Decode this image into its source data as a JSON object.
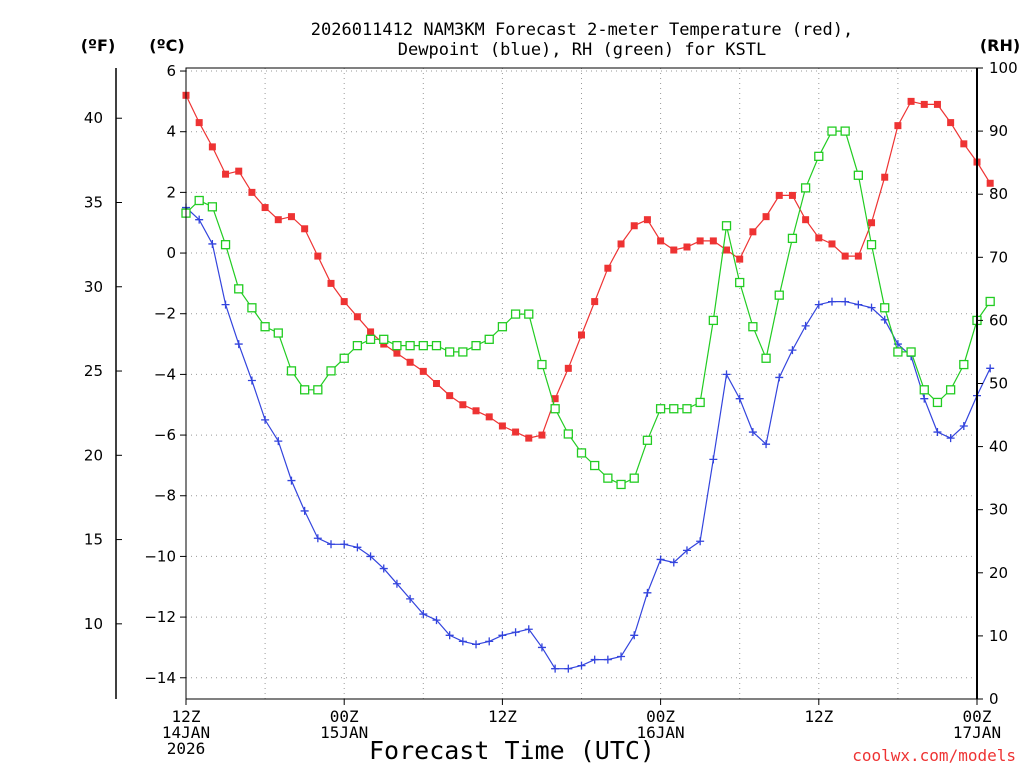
{
  "chart_data": {
    "type": "line",
    "title_lines": [
      "2026011412 NAM3KM Forecast 2-meter Temperature (red),",
      "Dewpoint (blue), RH (green) for KSTL"
    ],
    "xlabel": "Forecast Time (UTC)",
    "credit": "coolwx.com/models",
    "colors": {
      "temperature": "#ee3333",
      "dewpoint": "#3344dd",
      "rh": "#22cc22",
      "axis": "#000000"
    },
    "units": {
      "fahrenheit": "(ºF)",
      "celsius": "(ºC)",
      "rh": "(RH)"
    },
    "x": {
      "start_hour": 0,
      "end_hour": 60,
      "step_hours": 1
    },
    "x_ticks": [
      {
        "hour": 0,
        "lines": [
          "12Z",
          "14JAN",
          "2026"
        ]
      },
      {
        "hour": 12,
        "lines": [
          "00Z",
          "15JAN"
        ]
      },
      {
        "hour": 24,
        "lines": [
          "12Z"
        ]
      },
      {
        "hour": 36,
        "lines": [
          "00Z",
          "16JAN"
        ]
      },
      {
        "hour": 48,
        "lines": [
          "12Z"
        ]
      },
      {
        "hour": 60,
        "lines": [
          "00Z",
          "17JAN"
        ]
      }
    ],
    "y_celsius": {
      "range": [
        -14.7,
        6.1
      ],
      "ticks": [
        "-14",
        "-12",
        "-10",
        "-8",
        "-6",
        "-4",
        "-2",
        "0",
        "2",
        "4",
        "6"
      ]
    },
    "y_fahrenheit": {
      "ticks": [
        "10",
        "15",
        "20",
        "25",
        "30",
        "35",
        "40"
      ]
    },
    "y_rh": {
      "range": [
        0,
        100
      ],
      "ticks": [
        "0",
        "10",
        "20",
        "30",
        "40",
        "50",
        "60",
        "70",
        "80",
        "90",
        "100"
      ]
    },
    "series": [
      {
        "name": "2-meter Temperature",
        "unit": "C",
        "marker": "filled-square",
        "values": [
          5.2,
          4.3,
          3.5,
          2.6,
          2.7,
          2.0,
          1.5,
          1.1,
          1.2,
          0.8,
          -0.1,
          -1.0,
          -1.6,
          -2.1,
          -2.6,
          -3.0,
          -3.3,
          -3.6,
          -3.9,
          -4.3,
          -4.7,
          -5.0,
          -5.2,
          -5.4,
          -5.7,
          -5.9,
          -6.1,
          -6.0,
          -4.8,
          -3.8,
          -2.7,
          -1.6,
          -0.5,
          0.3,
          0.9,
          1.1,
          0.4,
          0.1,
          0.2,
          0.4,
          0.4,
          0.1,
          -0.2,
          0.7,
          1.2,
          1.9,
          1.9,
          1.1,
          0.5,
          0.3,
          -0.1,
          -0.1,
          1.0,
          2.5,
          4.2,
          5.0,
          4.9,
          4.9,
          4.3,
          3.6,
          3.0,
          2.3
        ]
      },
      {
        "name": "Dewpoint",
        "unit": "C",
        "marker": "plus",
        "values": [
          1.5,
          1.1,
          0.3,
          -1.7,
          -3.0,
          -4.2,
          -5.5,
          -6.2,
          -7.5,
          -8.5,
          -9.4,
          -9.6,
          -9.6,
          -9.7,
          -10.0,
          -10.4,
          -10.9,
          -11.4,
          -11.9,
          -12.1,
          -12.6,
          -12.8,
          -12.9,
          -12.8,
          -12.6,
          -12.5,
          -12.4,
          -13.0,
          -13.7,
          -13.7,
          -13.6,
          -13.4,
          -13.4,
          -13.3,
          -12.6,
          -11.2,
          -10.1,
          -10.2,
          -9.8,
          -9.5,
          -6.8,
          -4.0,
          -4.8,
          -5.9,
          -6.3,
          -4.1,
          -3.2,
          -2.4,
          -1.7,
          -1.6,
          -1.6,
          -1.7,
          -1.8,
          -2.2,
          -3.0,
          -3.4,
          -4.8,
          -5.9,
          -6.1,
          -5.7,
          -4.7,
          -3.8
        ]
      },
      {
        "name": "RH",
        "unit": "%",
        "marker": "open-square",
        "values": [
          77,
          79,
          78,
          72,
          65,
          62,
          59,
          58,
          52,
          49,
          49,
          52,
          54,
          56,
          57,
          57,
          56,
          56,
          56,
          56,
          55,
          55,
          56,
          57,
          59,
          61,
          61,
          53,
          46,
          42,
          39,
          37,
          35,
          34,
          35,
          41,
          46,
          46,
          46,
          47,
          60,
          75,
          66,
          59,
          54,
          64,
          73,
          81,
          86,
          90,
          90,
          83,
          72,
          62,
          55,
          55,
          49,
          47,
          49,
          53,
          60,
          63
        ]
      }
    ]
  }
}
